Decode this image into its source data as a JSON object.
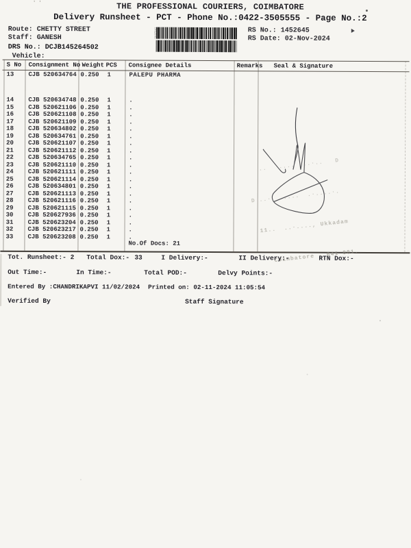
{
  "header": {
    "company": "THE PROFESSIONAL COURIERS, COIMBATORE",
    "subtitle": "Delivery Runsheet - PCT - Phone No.:0422-3505555 - Page No.:2",
    "route": "Route: CHETTY STREET",
    "staff": "Staff: GANESH",
    "drs": "DRS No.: DCJB145264502",
    "vehicle": "Vehicle:",
    "rs_no": "RS No.: 1452645",
    "rs_date": "RS Date: 02-Nov-2024"
  },
  "table": {
    "col_s_no": "S No",
    "col_consignment": "Consignment No",
    "col_weight": "Weight",
    "col_pcs": "PCS",
    "col_consignee": "Consignee Details",
    "col_remarks": "Remarks",
    "col_seal": "Seal & Signature",
    "rows": [
      {
        "s_no": "13",
        "consignment": "CJB 520634764",
        "weight": "0.250",
        "pcs": "1",
        "consignee": "PALEPU PHARMA"
      },
      {
        "s_no": "14",
        "consignment": "CJB 520634748",
        "weight": "0.250",
        "pcs": "1",
        "consignee": "."
      },
      {
        "s_no": "15",
        "consignment": "CJB 520621106",
        "weight": "0.250",
        "pcs": "1",
        "consignee": "."
      },
      {
        "s_no": "16",
        "consignment": "CJB 520621108",
        "weight": "0.250",
        "pcs": "1",
        "consignee": "."
      },
      {
        "s_no": "17",
        "consignment": "CJB 520621109",
        "weight": "0.250",
        "pcs": "1",
        "consignee": "."
      },
      {
        "s_no": "18",
        "consignment": "CJB 520634802",
        "weight": "0.250",
        "pcs": "1",
        "consignee": "."
      },
      {
        "s_no": "19",
        "consignment": "CJB 520634761",
        "weight": "0.250",
        "pcs": "1",
        "consignee": "."
      },
      {
        "s_no": "20",
        "consignment": "CJB 520621107",
        "weight": "0.250",
        "pcs": "1",
        "consignee": "."
      },
      {
        "s_no": "21",
        "consignment": "CJB 520621112",
        "weight": "0.250",
        "pcs": "1",
        "consignee": "."
      },
      {
        "s_no": "22",
        "consignment": "CJB 520634765",
        "weight": "0.250",
        "pcs": "1",
        "consignee": "."
      },
      {
        "s_no": "23",
        "consignment": "CJB 520621110",
        "weight": "0.250",
        "pcs": "1",
        "consignee": "."
      },
      {
        "s_no": "24",
        "consignment": "CJB 520621111",
        "weight": "0.250",
        "pcs": "1",
        "consignee": "."
      },
      {
        "s_no": "25",
        "consignment": "CJB 520621114",
        "weight": "0.250",
        "pcs": "1",
        "consignee": "."
      },
      {
        "s_no": "26",
        "consignment": "CJB 520634801",
        "weight": "0.250",
        "pcs": "1",
        "consignee": "."
      },
      {
        "s_no": "27",
        "consignment": "CJB 520621113",
        "weight": "0.250",
        "pcs": "1",
        "consignee": "."
      },
      {
        "s_no": "28",
        "consignment": "CJB 520621116",
        "weight": "0.250",
        "pcs": "1",
        "consignee": "."
      },
      {
        "s_no": "29",
        "consignment": "CJB 520621115",
        "weight": "0.250",
        "pcs": "1",
        "consignee": "."
      },
      {
        "s_no": "30",
        "consignment": "CJB 520627936",
        "weight": "0.250",
        "pcs": "1",
        "consignee": "."
      },
      {
        "s_no": "31",
        "consignment": "CJB 520623204",
        "weight": "0.250",
        "pcs": "1",
        "consignee": "."
      },
      {
        "s_no": "32",
        "consignment": "CJB 520623217",
        "weight": "0.250",
        "pcs": "1",
        "consignee": "."
      },
      {
        "s_no": "33",
        "consignment": "CJB 520623208",
        "weight": "0.250",
        "pcs": "1",
        "consignee": "."
      }
    ],
    "no_of_docs": "No.Of Docs: 21"
  },
  "summary": {
    "tot_runsheet": "Tot. Runsheet:- 2",
    "total_dox_label": "Total Dox:-",
    "total_dox_value": "33",
    "i_delivery": "I Delivery:-",
    "ii_delivery": "II Delivery:-",
    "rtn_dox": "RTN Dox:-",
    "out_time": "Out Time:-",
    "in_time": "In Time:-",
    "total_pod": "Total POD:-",
    "delvy_points": "Delvy Points:-",
    "entered_by": "Entered By :CHANDRIKAPVI 11/02/2024",
    "printed_on": "Printed on: 02-11-2024 11:05:54",
    "verified_by": "Verified By",
    "staff_signature": "Staff Signature"
  },
  "stamp": {
    "line1": "..   ....  ..·..   D",
    "line2": "D ..·   ....  .·....·.",
    "line3": "11..  ..·...., Ukkadam",
    "line4": "Coimbatore - 641 001."
  },
  "colors": {
    "paper": "#f6f5f1",
    "ink": "#2b2a30",
    "rule": "#55504a",
    "stamp": "#8d8a80"
  }
}
